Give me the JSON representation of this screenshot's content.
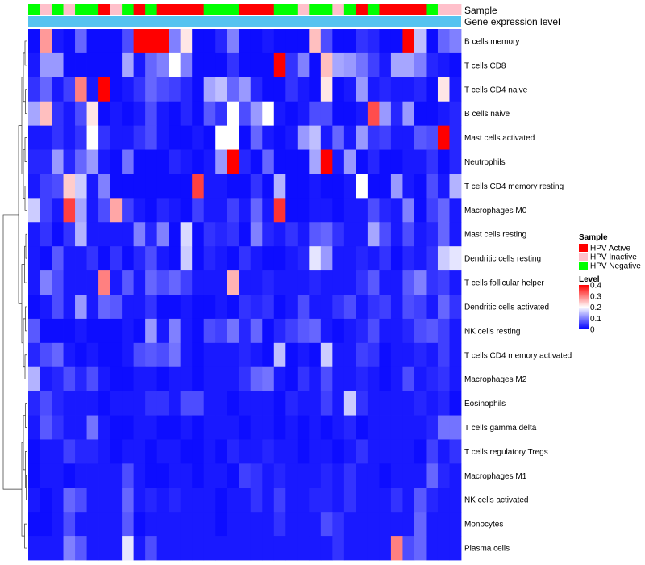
{
  "chart_data": {
    "type": "heatmap",
    "title": "",
    "column_annotations": [
      {
        "label": "Sample",
        "values": [
          "HPV Negative",
          "HPV Inactive",
          "HPV Negative",
          "HPV Inactive",
          "HPV Negative",
          "HPV Negative",
          "HPV Active",
          "HPV Inactive",
          "HPV Negative",
          "HPV Active",
          "HPV Negative",
          "HPV Active",
          "HPV Active",
          "HPV Active",
          "HPV Active",
          "HPV Negative",
          "HPV Negative",
          "HPV Negative",
          "HPV Active",
          "HPV Active",
          "HPV Active",
          "HPV Negative",
          "HPV Negative",
          "HPV Inactive",
          "HPV Negative",
          "HPV Negative",
          "HPV Inactive",
          "HPV Negative",
          "HPV Active",
          "HPV Negative",
          "HPV Active",
          "HPV Active",
          "HPV Active",
          "HPV Active",
          "HPV Negative",
          "HPV Inactive",
          "HPV Inactive"
        ]
      },
      {
        "label": "Gene expression level",
        "values": []
      }
    ],
    "rows": [
      "B cells memory",
      "T cells CD8",
      "T cells CD4 naive",
      "B cells naive",
      "Mast cells activated",
      "Neutrophils",
      "T cells CD4 memory resting",
      "Macrophages M0",
      "Mast cells resting",
      "Dendritic cells resting",
      "T cells follicular helper",
      "Dendritic cells activated",
      "NK cells resting",
      "T cells CD4 memory activated",
      "Macrophages M2",
      "Eosinophils",
      "T cells gamma delta",
      "T cells regulatory  Tregs",
      "Macrophages M1",
      "NK cells activated",
      "Monocytes",
      "Plasma cells"
    ],
    "values": [
      [
        0.01,
        0.28,
        0.02,
        0.01,
        0.08,
        0.01,
        0.01,
        0.01,
        0.06,
        0.4,
        0.4,
        0.4,
        0.1,
        0.22,
        0.01,
        0.01,
        0.03,
        0.1,
        0.01,
        0.01,
        0.02,
        0.01,
        0.01,
        0.01,
        0.25,
        0.06,
        0.01,
        0.01,
        0.04,
        0.03,
        0.01,
        0.01,
        0.4,
        0.15,
        0.01,
        0.08,
        0.1
      ],
      [
        0.02,
        0.12,
        0.12,
        0.01,
        0.01,
        0.01,
        0.01,
        0.01,
        0.13,
        0.02,
        0.08,
        0.1,
        0.2,
        0.1,
        0.01,
        0.01,
        0.01,
        0.04,
        0.01,
        0.01,
        0.01,
        0.4,
        0.04,
        0.1,
        0.01,
        0.25,
        0.13,
        0.12,
        0.09,
        0.05,
        0.02,
        0.13,
        0.13,
        0.1,
        0.03,
        0.02,
        0.01
      ],
      [
        0.04,
        0.08,
        0.02,
        0.05,
        0.3,
        0.02,
        0.4,
        0.01,
        0.02,
        0.04,
        0.08,
        0.06,
        0.05,
        0.03,
        0.01,
        0.13,
        0.15,
        0.08,
        0.12,
        0.03,
        0.01,
        0.01,
        0.04,
        0.02,
        0.01,
        0.22,
        0.01,
        0.02,
        0.12,
        0.02,
        0.03,
        0.02,
        0.02,
        0.03,
        0.01,
        0.22,
        0.02
      ],
      [
        0.13,
        0.25,
        0.04,
        0.02,
        0.06,
        0.22,
        0.01,
        0.02,
        0.01,
        0.02,
        0.06,
        0.02,
        0.01,
        0.03,
        0.01,
        0.07,
        0.04,
        0.2,
        0.06,
        0.12,
        0.2,
        0.02,
        0.01,
        0.02,
        0.06,
        0.06,
        0.01,
        0.01,
        0.02,
        0.34,
        0.12,
        0.03,
        0.12,
        0.01,
        0.01,
        0.02,
        0.03
      ],
      [
        0.02,
        0.02,
        0.04,
        0.02,
        0.04,
        0.2,
        0.04,
        0.02,
        0.02,
        0.04,
        0.06,
        0.02,
        0.01,
        0.01,
        0.02,
        0.01,
        0.2,
        0.2,
        0.01,
        0.08,
        0.02,
        0.01,
        0.02,
        0.12,
        0.15,
        0.02,
        0.08,
        0.02,
        0.12,
        0.04,
        0.05,
        0.02,
        0.02,
        0.07,
        0.06,
        0.4,
        0.03
      ],
      [
        0.03,
        0.03,
        0.12,
        0.03,
        0.08,
        0.12,
        0.02,
        0.01,
        0.09,
        0.01,
        0.01,
        0.01,
        0.03,
        0.02,
        0.01,
        0.02,
        0.12,
        0.4,
        0.03,
        0.01,
        0.08,
        0.01,
        0.01,
        0.01,
        0.13,
        0.4,
        0.02,
        0.12,
        0.01,
        0.03,
        0.01,
        0.01,
        0.02,
        0.02,
        0.04,
        0.01,
        0.03
      ],
      [
        0.02,
        0.05,
        0.06,
        0.24,
        0.16,
        0.02,
        0.1,
        0.01,
        0.01,
        0.01,
        0.01,
        0.01,
        0.01,
        0.01,
        0.35,
        0.02,
        0.02,
        0.01,
        0.01,
        0.04,
        0.01,
        0.14,
        0.01,
        0.01,
        0.02,
        0.01,
        0.01,
        0.02,
        0.2,
        0.01,
        0.01,
        0.12,
        0.02,
        0.01,
        0.06,
        0.02,
        0.14
      ],
      [
        0.16,
        0.05,
        0.02,
        0.35,
        0.13,
        0.02,
        0.06,
        0.27,
        0.05,
        0.02,
        0.01,
        0.03,
        0.02,
        0.01,
        0.05,
        0.02,
        0.02,
        0.05,
        0.02,
        0.08,
        0.02,
        0.36,
        0.01,
        0.01,
        0.02,
        0.02,
        0.01,
        0.02,
        0.02,
        0.06,
        0.03,
        0.02,
        0.1,
        0.01,
        0.05,
        0.08,
        0.02
      ],
      [
        0.02,
        0.04,
        0.01,
        0.04,
        0.14,
        0.02,
        0.02,
        0.02,
        0.02,
        0.1,
        0.03,
        0.1,
        0.01,
        0.17,
        0.01,
        0.04,
        0.03,
        0.04,
        0.01,
        0.1,
        0.03,
        0.02,
        0.04,
        0.02,
        0.07,
        0.08,
        0.04,
        0.02,
        0.02,
        0.13,
        0.06,
        0.02,
        0.06,
        0.02,
        0.03,
        0.08,
        0.02
      ],
      [
        0.02,
        0.01,
        0.07,
        0.02,
        0.02,
        0.04,
        0.01,
        0.04,
        0.01,
        0.03,
        0.06,
        0.02,
        0.01,
        0.16,
        0.01,
        0.03,
        0.02,
        0.01,
        0.04,
        0.02,
        0.01,
        0.01,
        0.02,
        0.03,
        0.18,
        0.12,
        0.02,
        0.02,
        0.03,
        0.02,
        0.04,
        0.01,
        0.03,
        0.02,
        0.04,
        0.16,
        0.18
      ],
      [
        0.02,
        0.1,
        0.06,
        0.02,
        0.02,
        0.02,
        0.3,
        0.02,
        0.07,
        0.02,
        0.08,
        0.06,
        0.08,
        0.05,
        0.02,
        0.02,
        0.02,
        0.26,
        0.02,
        0.02,
        0.03,
        0.02,
        0.02,
        0.02,
        0.03,
        0.02,
        0.02,
        0.02,
        0.04,
        0.07,
        0.02,
        0.02,
        0.07,
        0.1,
        0.04,
        0.05,
        0.02
      ],
      [
        0.01,
        0.02,
        0.06,
        0.02,
        0.12,
        0.02,
        0.08,
        0.07,
        0.02,
        0.02,
        0.04,
        0.01,
        0.01,
        0.02,
        0.01,
        0.01,
        0.02,
        0.01,
        0.04,
        0.03,
        0.04,
        0.01,
        0.02,
        0.06,
        0.02,
        0.02,
        0.04,
        0.06,
        0.02,
        0.04,
        0.05,
        0.02,
        0.06,
        0.05,
        0.02,
        0.08,
        0.04
      ],
      [
        0.07,
        0.01,
        0.01,
        0.01,
        0.02,
        0.01,
        0.01,
        0.01,
        0.02,
        0.01,
        0.12,
        0.02,
        0.1,
        0.02,
        0.01,
        0.06,
        0.05,
        0.09,
        0.03,
        0.08,
        0.01,
        0.03,
        0.05,
        0.07,
        0.08,
        0.02,
        0.01,
        0.02,
        0.03,
        0.06,
        0.02,
        0.02,
        0.03,
        0.06,
        0.07,
        0.05,
        0.02
      ],
      [
        0.03,
        0.06,
        0.08,
        0.02,
        0.01,
        0.02,
        0.01,
        0.01,
        0.02,
        0.06,
        0.07,
        0.06,
        0.09,
        0.02,
        0.01,
        0.02,
        0.02,
        0.02,
        0.03,
        0.02,
        0.01,
        0.15,
        0.01,
        0.02,
        0.01,
        0.16,
        0.02,
        0.02,
        0.05,
        0.04,
        0.01,
        0.02,
        0.02,
        0.03,
        0.02,
        0.05,
        0.02
      ],
      [
        0.14,
        0.02,
        0.03,
        0.06,
        0.03,
        0.06,
        0.02,
        0.01,
        0.01,
        0.02,
        0.02,
        0.01,
        0.02,
        0.02,
        0.01,
        0.02,
        0.02,
        0.02,
        0.04,
        0.08,
        0.09,
        0.02,
        0.01,
        0.04,
        0.02,
        0.06,
        0.02,
        0.02,
        0.03,
        0.02,
        0.01,
        0.02,
        0.06,
        0.02,
        0.03,
        0.04,
        0.02
      ],
      [
        0.03,
        0.06,
        0.03,
        0.02,
        0.02,
        0.02,
        0.01,
        0.02,
        0.02,
        0.02,
        0.04,
        0.04,
        0.02,
        0.06,
        0.06,
        0.02,
        0.02,
        0.01,
        0.02,
        0.02,
        0.02,
        0.01,
        0.03,
        0.02,
        0.02,
        0.05,
        0.02,
        0.16,
        0.04,
        0.02,
        0.02,
        0.02,
        0.02,
        0.03,
        0.02,
        0.03,
        0.01
      ],
      [
        0.02,
        0.07,
        0.04,
        0.02,
        0.02,
        0.09,
        0.02,
        0.01,
        0.01,
        0.02,
        0.02,
        0.01,
        0.01,
        0.02,
        0.01,
        0.02,
        0.02,
        0.02,
        0.01,
        0.02,
        0.02,
        0.01,
        0.02,
        0.01,
        0.02,
        0.01,
        0.02,
        0.03,
        0.01,
        0.02,
        0.02,
        0.02,
        0.02,
        0.02,
        0.03,
        0.09,
        0.09
      ],
      [
        0.01,
        0.02,
        0.02,
        0.05,
        0.03,
        0.03,
        0.02,
        0.01,
        0.02,
        0.02,
        0.01,
        0.02,
        0.02,
        0.01,
        0.01,
        0.02,
        0.01,
        0.03,
        0.02,
        0.02,
        0.03,
        0.02,
        0.02,
        0.01,
        0.02,
        0.02,
        0.01,
        0.02,
        0.04,
        0.02,
        0.02,
        0.02,
        0.02,
        0.01,
        0.05,
        0.02,
        0.04
      ],
      [
        0.01,
        0.02,
        0.02,
        0.01,
        0.02,
        0.02,
        0.02,
        0.02,
        0.06,
        0.02,
        0.01,
        0.01,
        0.02,
        0.02,
        0.01,
        0.02,
        0.02,
        0.01,
        0.05,
        0.04,
        0.02,
        0.03,
        0.02,
        0.02,
        0.02,
        0.03,
        0.02,
        0.04,
        0.02,
        0.02,
        0.01,
        0.02,
        0.02,
        0.02,
        0.08,
        0.03,
        0.02
      ],
      [
        0.02,
        0.01,
        0.02,
        0.08,
        0.06,
        0.02,
        0.02,
        0.02,
        0.08,
        0.02,
        0.03,
        0.02,
        0.03,
        0.02,
        0.02,
        0.02,
        0.01,
        0.02,
        0.02,
        0.04,
        0.02,
        0.05,
        0.02,
        0.02,
        0.03,
        0.03,
        0.02,
        0.04,
        0.02,
        0.02,
        0.02,
        0.04,
        0.02,
        0.07,
        0.03,
        0.02,
        0.02
      ],
      [
        0.01,
        0.01,
        0.02,
        0.06,
        0.02,
        0.02,
        0.02,
        0.02,
        0.07,
        0.01,
        0.02,
        0.02,
        0.02,
        0.02,
        0.02,
        0.02,
        0.01,
        0.02,
        0.02,
        0.02,
        0.02,
        0.04,
        0.02,
        0.02,
        0.02,
        0.06,
        0.04,
        0.02,
        0.02,
        0.02,
        0.02,
        0.02,
        0.02,
        0.08,
        0.02,
        0.02,
        0.02
      ],
      [
        0.02,
        0.02,
        0.02,
        0.1,
        0.07,
        0.02,
        0.02,
        0.02,
        0.18,
        0.02,
        0.06,
        0.02,
        0.02,
        0.02,
        0.02,
        0.02,
        0.02,
        0.02,
        0.02,
        0.02,
        0.02,
        0.02,
        0.02,
        0.02,
        0.02,
        0.02,
        0.04,
        0.02,
        0.02,
        0.02,
        0.02,
        0.3,
        0.06,
        0.08,
        0.02,
        0.02,
        0.02
      ]
    ],
    "legend": {
      "sample": {
        "title": "Sample",
        "items": [
          {
            "label": "HPV Active",
            "color": "#ff0000"
          },
          {
            "label": "HPV Inactive",
            "color": "#ffc0cb"
          },
          {
            "label": "HPV Negative",
            "color": "#00ff00"
          }
        ]
      },
      "level": {
        "title": "Level",
        "ticks": [
          0.4,
          0.3,
          0.2,
          0.1,
          0
        ],
        "range": [
          0,
          0.4
        ],
        "colors": {
          "low": "#0000ff",
          "mid": "#ffffff",
          "high": "#ff0000"
        }
      }
    },
    "expression_bar_color": "#56c3f0",
    "legend_placement": "right",
    "row_dendrogram": "left"
  }
}
